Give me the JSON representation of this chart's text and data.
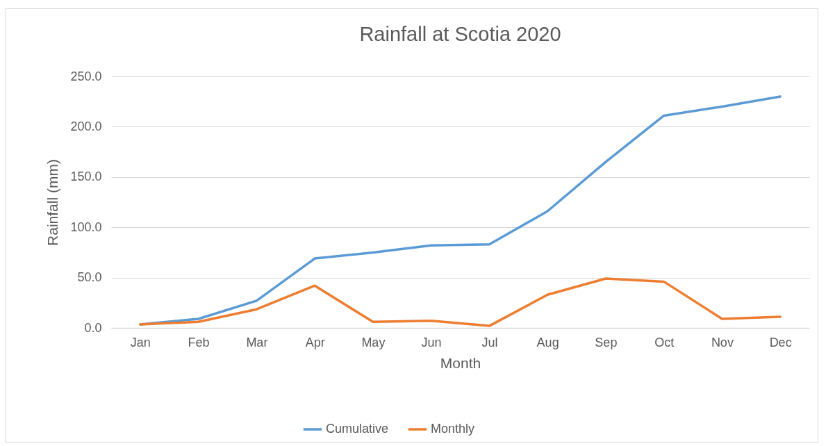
{
  "chart_data": {
    "type": "line",
    "title": "Rainfall at Scotia 2020",
    "xlabel": "Month",
    "ylabel": "Rainfall (mm)",
    "categories": [
      "Jan",
      "Feb",
      "Mar",
      "Apr",
      "May",
      "Jun",
      "Jul",
      "Aug",
      "Sep",
      "Oct",
      "Nov",
      "Dec"
    ],
    "series": [
      {
        "name": "Cumulative",
        "color": "#5b9bd5",
        "values": [
          3.5,
          9,
          27,
          69,
          75,
          82,
          83,
          116,
          165,
          211,
          220,
          230
        ]
      },
      {
        "name": "Monthly",
        "color": "#ed7d31",
        "values": [
          3.5,
          6,
          18.5,
          42,
          6,
          7,
          2,
          33,
          49,
          46,
          9,
          11
        ]
      }
    ],
    "ylim": [
      0,
      250
    ],
    "yticks": [
      {
        "value": 0,
        "label": "0.0"
      },
      {
        "value": 50,
        "label": "50.0"
      },
      {
        "value": 100,
        "label": "100.0"
      },
      {
        "value": 150,
        "label": "150.0"
      },
      {
        "value": 200,
        "label": "200.0"
      },
      {
        "value": 250,
        "label": "250.0"
      }
    ],
    "grid": "y",
    "legend": "bottom",
    "marker": "none",
    "line_style": "solid"
  }
}
